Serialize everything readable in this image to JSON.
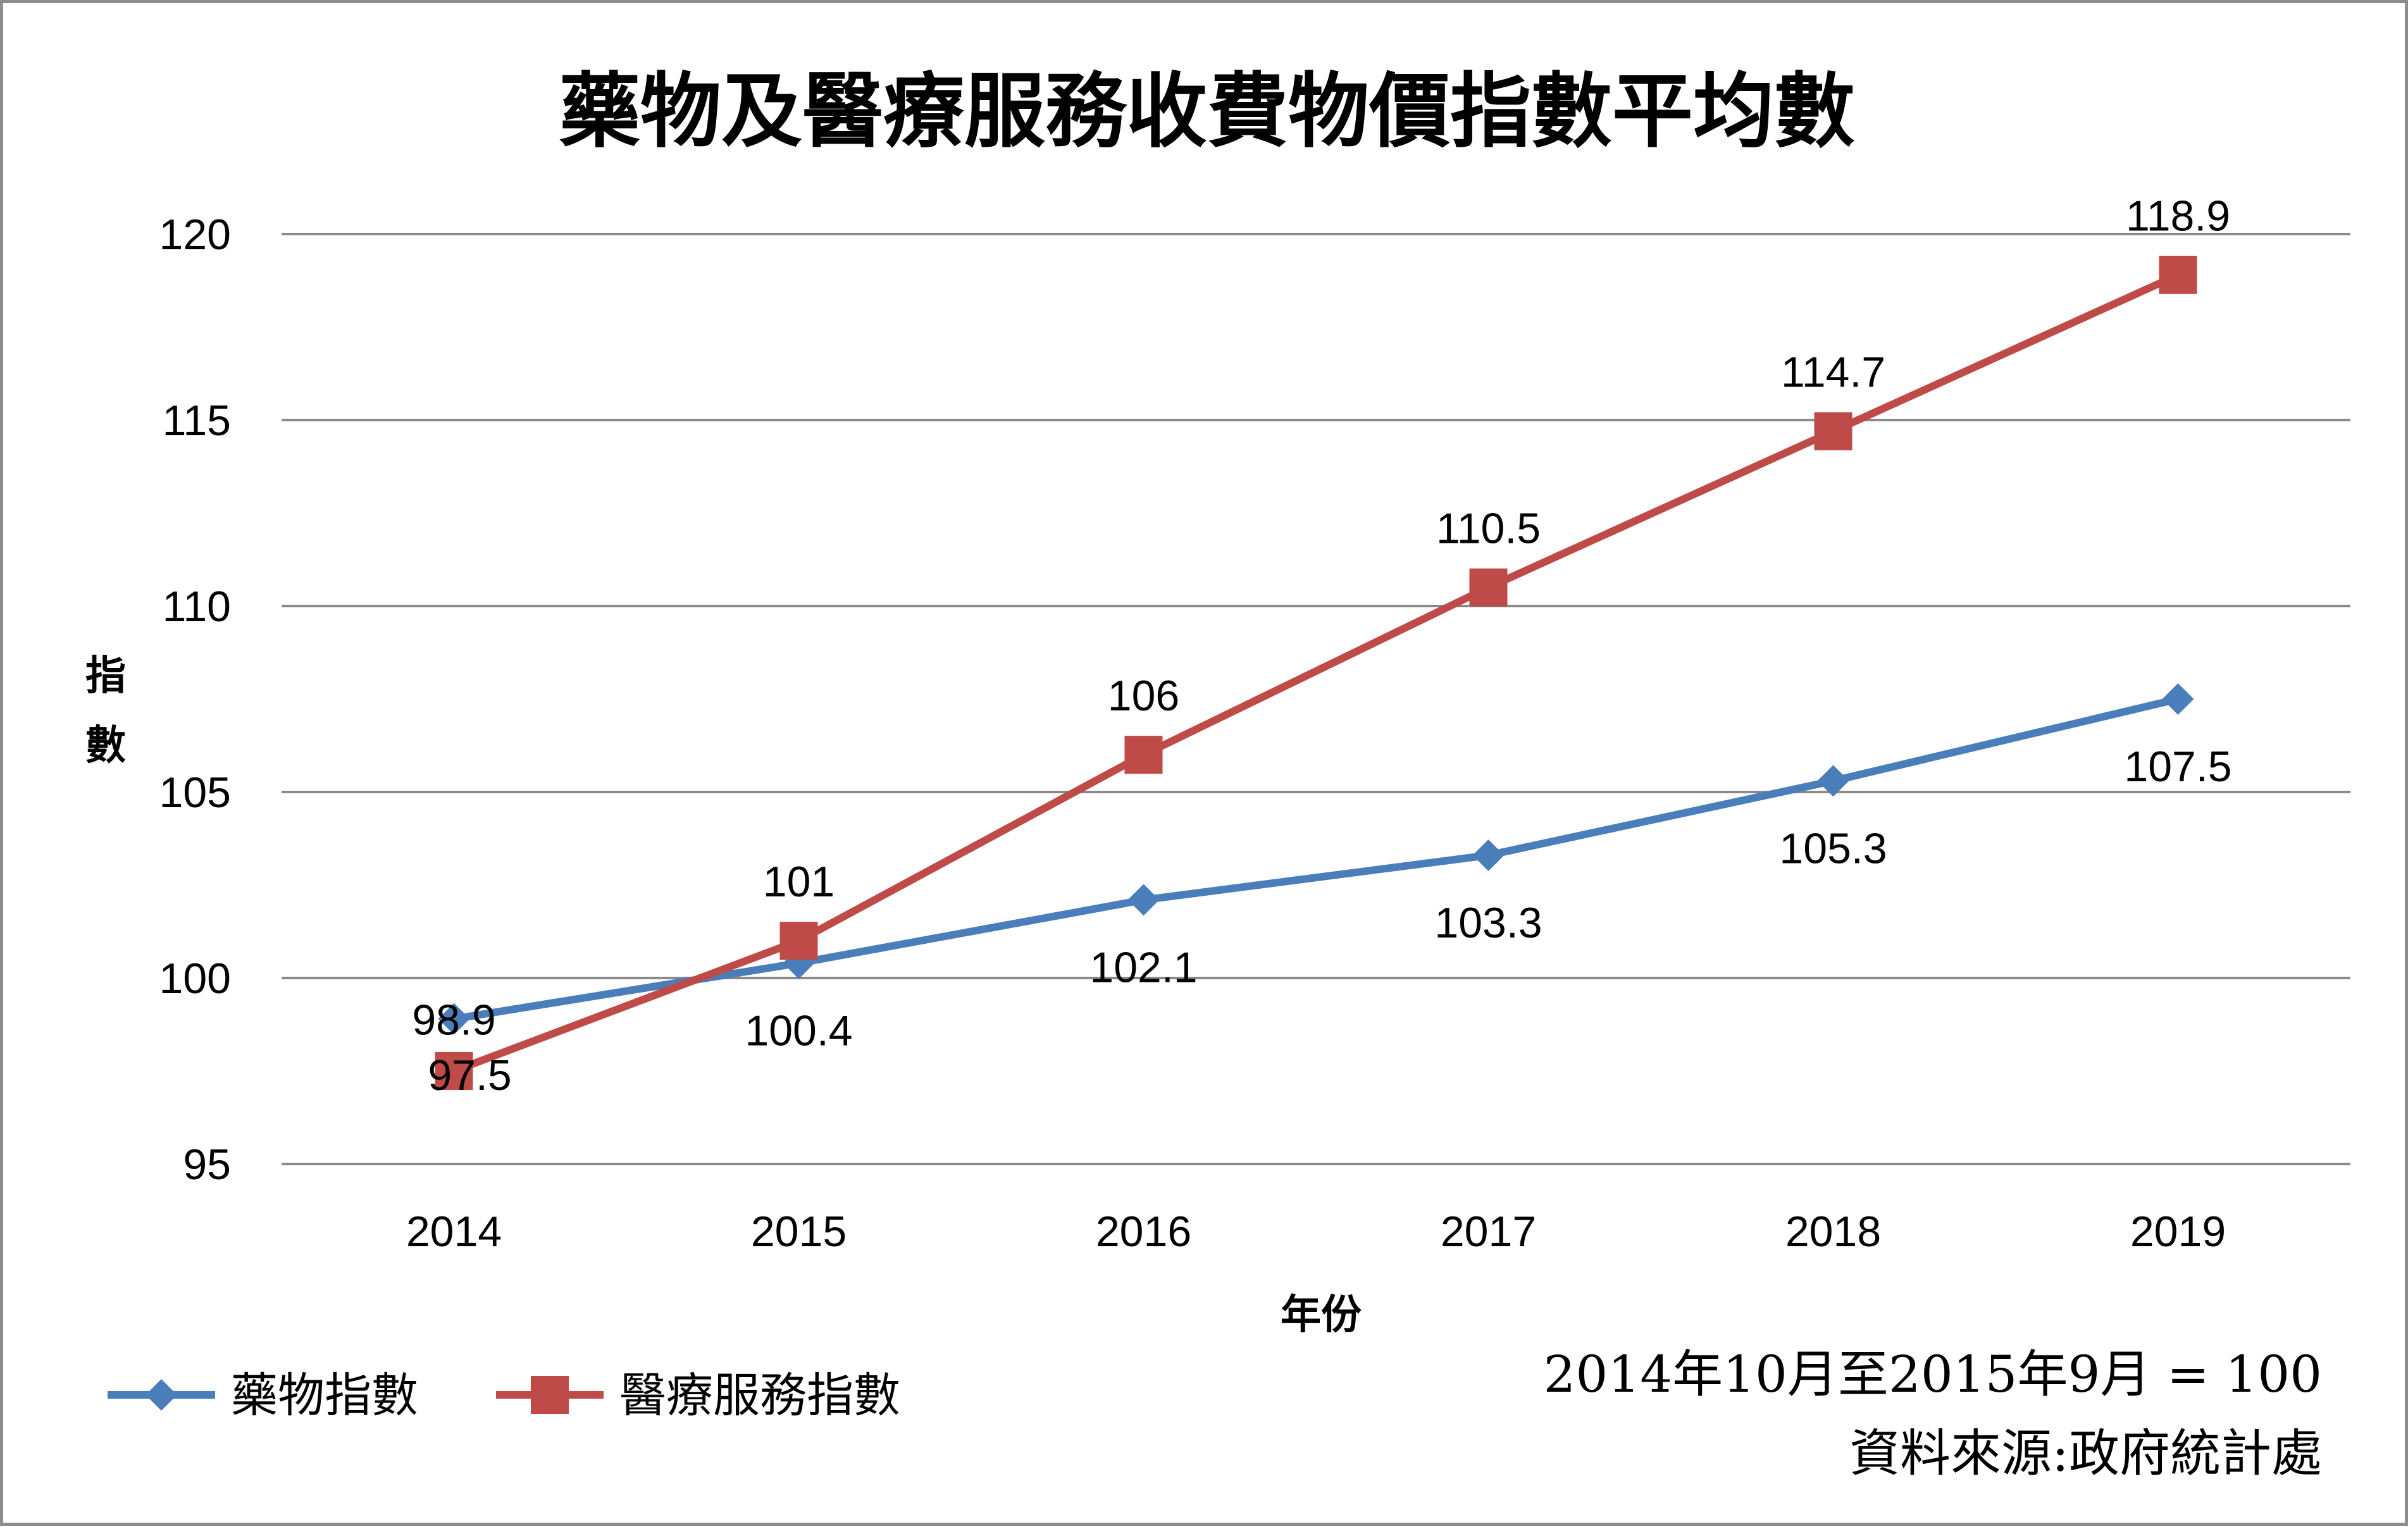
{
  "chart_data": {
    "type": "line",
    "title": "藥物及醫療服務收費物價指數平均數",
    "xlabel": "年份",
    "ylabel": "指數",
    "categories": [
      "2014",
      "2015",
      "2016",
      "2017",
      "2018",
      "2019"
    ],
    "ylim": [
      95,
      120
    ],
    "yticks": [
      95,
      100,
      105,
      110,
      115,
      120
    ],
    "grid": true,
    "legend_position": "bottom-left",
    "series": [
      {
        "name": "藥物指數",
        "values": [
          98.9,
          100.4,
          102.1,
          103.3,
          105.3,
          107.5
        ],
        "labels": [
          "98.9",
          "100.4",
          "102.1",
          "103.3",
          "105.3",
          "107.5"
        ],
        "color": "#4a7ebb",
        "marker": "diamond",
        "label_position": "below"
      },
      {
        "name": "醫療服務指數",
        "values": [
          97.5,
          101,
          106,
          110.5,
          114.7,
          118.9
        ],
        "labels": [
          "97.5",
          "101",
          "106",
          "110.5",
          "114.7",
          "118.9"
        ],
        "color": "#be4b48",
        "marker": "square",
        "label_position": "above"
      }
    ],
    "annotations": [
      "2014年10月至2015年9月 = 100",
      "資料來源:政府統計處"
    ]
  }
}
